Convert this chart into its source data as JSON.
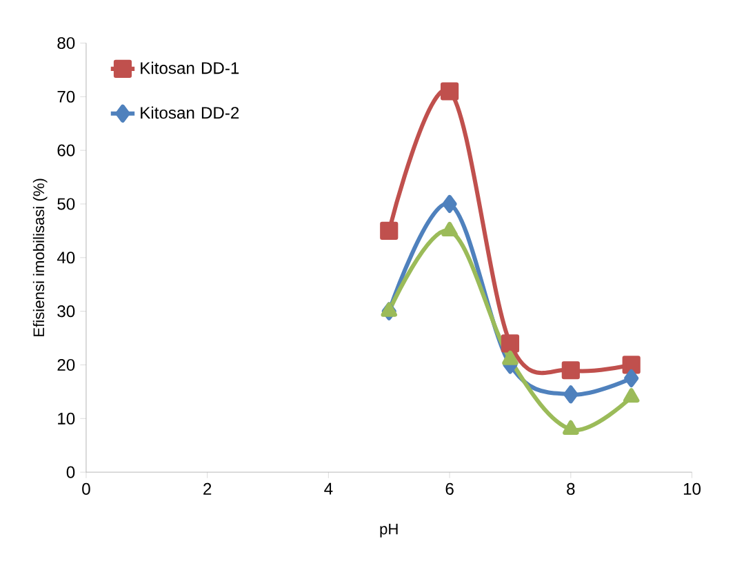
{
  "chart_data": {
    "type": "line",
    "xlabel": "pH",
    "ylabel": "Efisiensi imobilisasi (%)",
    "xlim": [
      0,
      10
    ],
    "xticks": [
      0,
      2,
      4,
      6,
      8,
      10
    ],
    "ylim": [
      0,
      80
    ],
    "yticks": [
      0,
      10,
      20,
      30,
      40,
      50,
      60,
      70,
      80
    ],
    "grid": false,
    "legend": "top left",
    "line_style": "solid",
    "series": [
      {
        "name": "Kitosan DD-1",
        "color": "#c0504d",
        "marker": "square",
        "x": [
          5,
          6,
          7,
          8,
          9
        ],
        "values": [
          45,
          71,
          24,
          19,
          20
        ]
      },
      {
        "name": "Kitosan DD-2",
        "color": "#4f81bd",
        "marker": "diamond",
        "x": [
          5,
          6,
          7,
          8,
          9
        ],
        "values": [
          30,
          50,
          20,
          14.5,
          17.5
        ]
      },
      {
        "color": "#9bbb59",
        "marker": "triangle",
        "x": [
          5,
          6,
          7,
          8,
          9
        ],
        "values": [
          30,
          45,
          21,
          8,
          14
        ]
      }
    ]
  }
}
